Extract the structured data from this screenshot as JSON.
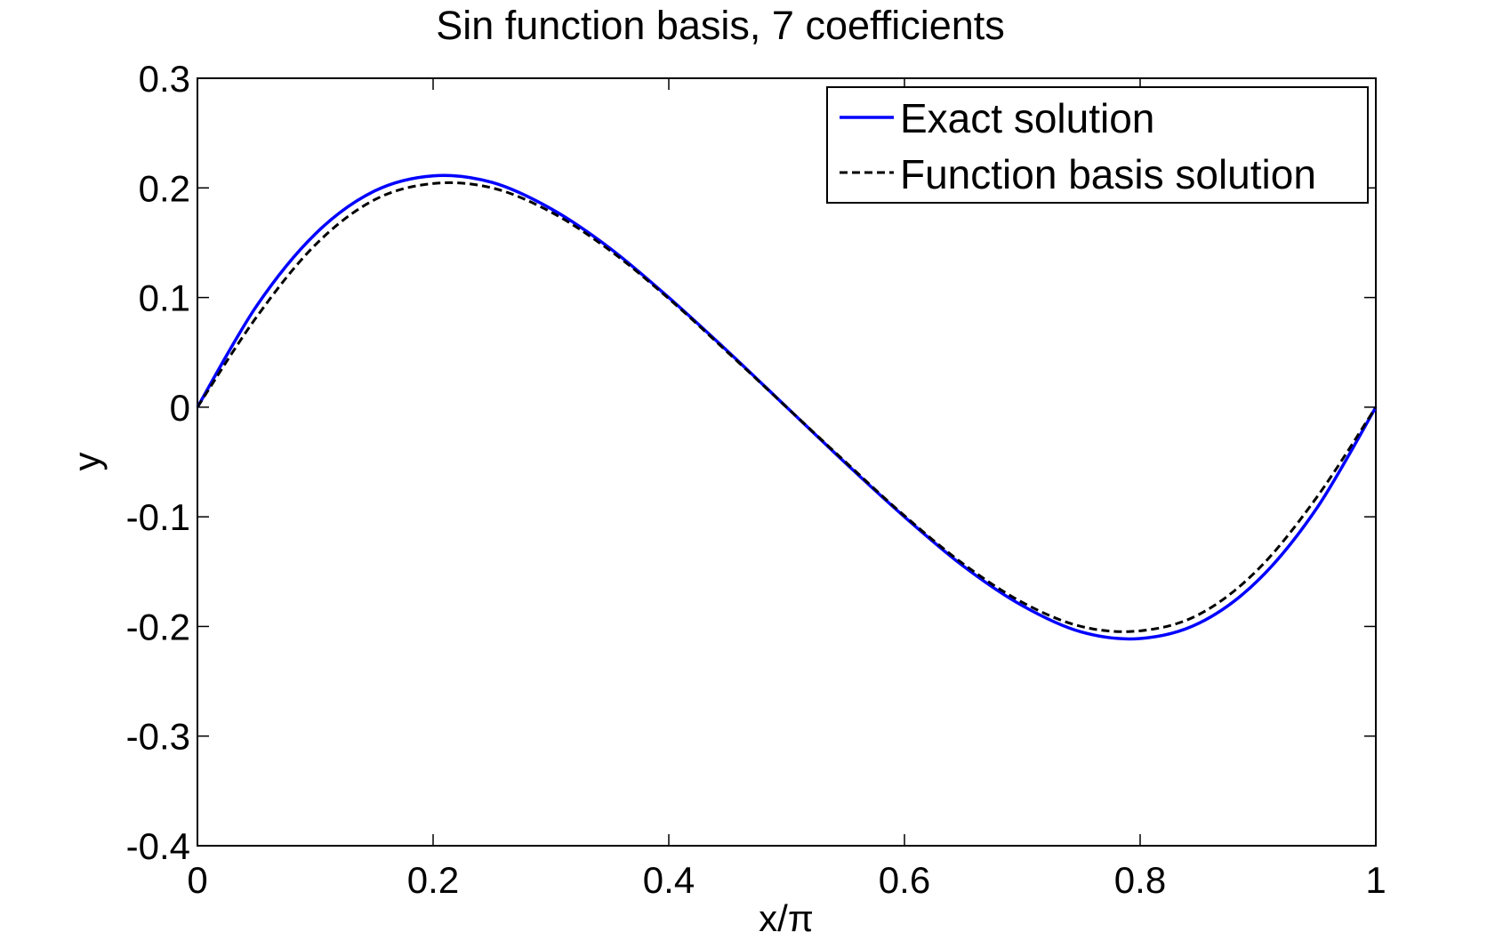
{
  "chart_data": {
    "type": "line",
    "title": "Sin function basis, 7 coefficients",
    "xlabel": "x/π",
    "ylabel": "y",
    "xlim": [
      0,
      1
    ],
    "ylim": [
      -0.4,
      0.3
    ],
    "xticks": [
      0,
      0.2,
      0.4,
      0.6,
      0.8,
      1
    ],
    "xtick_labels": [
      "0",
      "0.2",
      "0.4",
      "0.6",
      "0.8",
      "1"
    ],
    "yticks": [
      0.3,
      0.2,
      0.1,
      0,
      -0.1,
      -0.2,
      -0.3,
      -0.4
    ],
    "ytick_labels": [
      "0.3",
      "0.2",
      "0.1",
      "0",
      "-0.1",
      "-0.2",
      "-0.3",
      "-0.4"
    ],
    "grid": false,
    "legend_position": "top-right",
    "x": [
      0,
      0.05,
      0.1,
      0.15,
      0.2,
      0.25,
      0.3,
      0.35,
      0.4,
      0.45,
      0.5,
      0.55,
      0.6,
      0.65,
      0.7,
      0.75,
      0.8,
      0.85,
      0.9,
      0.95,
      1
    ],
    "series": [
      {
        "name": "Exact solution",
        "color": "#0000ff",
        "style": "solid",
        "values": [
          0,
          0.092,
          0.158,
          0.197,
          0.211,
          0.205,
          0.181,
          0.145,
          0.1,
          0.051,
          0,
          -0.051,
          -0.1,
          -0.145,
          -0.181,
          -0.205,
          -0.211,
          -0.197,
          -0.158,
          -0.092,
          0
        ]
      },
      {
        "name": "Function basis solution",
        "color": "#000000",
        "style": "dashed",
        "values": [
          0,
          0.082,
          0.148,
          0.189,
          0.204,
          0.2,
          0.178,
          0.143,
          0.099,
          0.05,
          0,
          -0.05,
          -0.099,
          -0.143,
          -0.178,
          -0.2,
          -0.204,
          -0.189,
          -0.148,
          -0.082,
          0
        ]
      }
    ]
  }
}
